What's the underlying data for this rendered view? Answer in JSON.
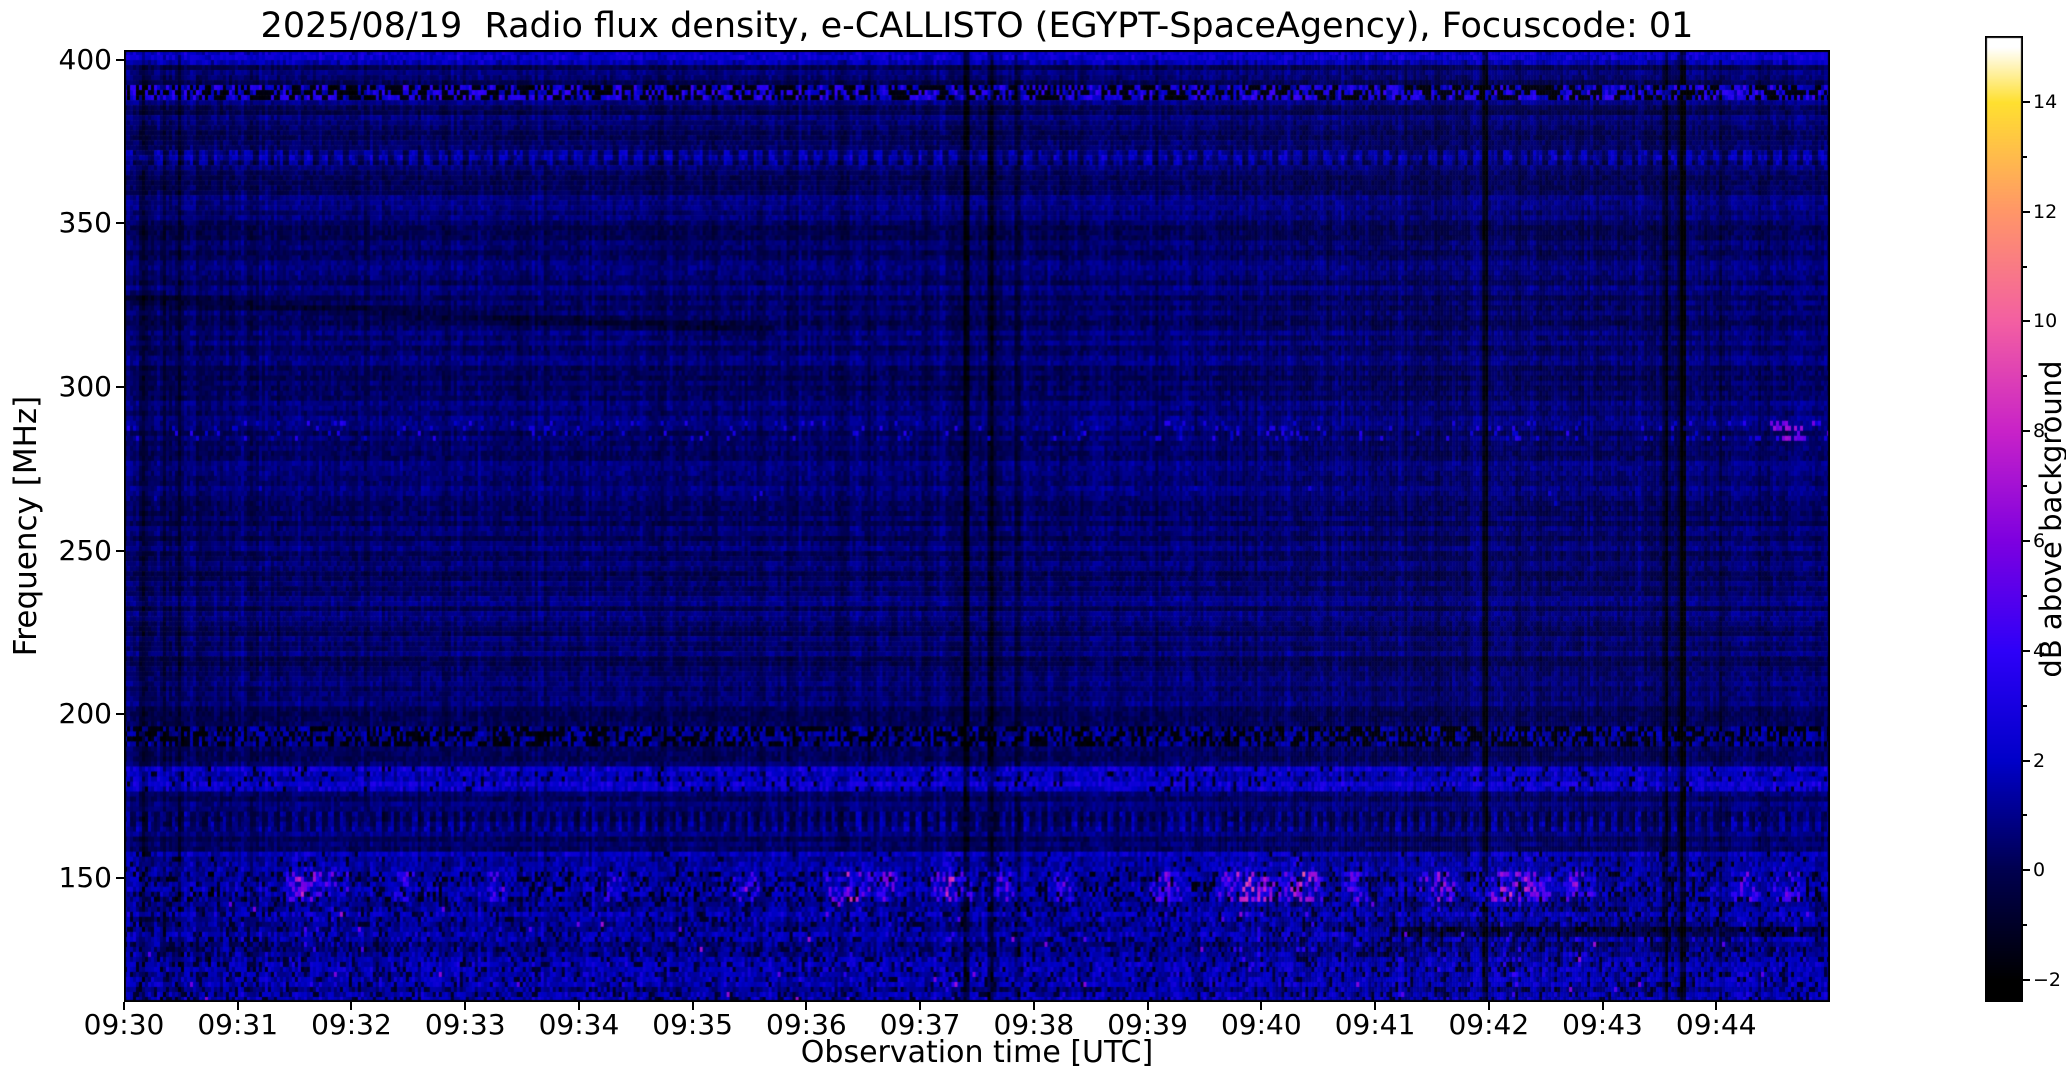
{
  "colors": {
    "background": "#ffffff",
    "text": "#000000",
    "axis": "#000000"
  },
  "chart_data": {
    "type": "heatmap",
    "title": "2025/08/19  Radio flux density, e-CALLISTO (EGYPT-SpaceAgency), Focuscode: 01",
    "xlabel": "Observation time [UTC]",
    "ylabel": "Frequency [MHz]",
    "colorbar_label": "dB above background",
    "x_axis": {
      "range_minutes": [
        0,
        15
      ],
      "start_time": "09:30",
      "ticks": [
        {
          "m": 0,
          "label": "09:30"
        },
        {
          "m": 1,
          "label": "09:31"
        },
        {
          "m": 2,
          "label": "09:32"
        },
        {
          "m": 3,
          "label": "09:33"
        },
        {
          "m": 4,
          "label": "09:34"
        },
        {
          "m": 5,
          "label": "09:35"
        },
        {
          "m": 6,
          "label": "09:36"
        },
        {
          "m": 7,
          "label": "09:37"
        },
        {
          "m": 8,
          "label": "09:38"
        },
        {
          "m": 9,
          "label": "09:39"
        },
        {
          "m": 10,
          "label": "09:40"
        },
        {
          "m": 11,
          "label": "09:41"
        },
        {
          "m": 12,
          "label": "09:42"
        },
        {
          "m": 13,
          "label": "09:43"
        },
        {
          "m": 14,
          "label": "09:44"
        }
      ]
    },
    "y_axis": {
      "range_mhz": [
        112,
        403
      ],
      "ticks": [
        {
          "v": 400,
          "label": "400"
        },
        {
          "v": 350,
          "label": "350"
        },
        {
          "v": 300,
          "label": "300"
        },
        {
          "v": 250,
          "label": "250"
        },
        {
          "v": 200,
          "label": "200"
        },
        {
          "v": 150,
          "label": "150"
        }
      ]
    },
    "colorbar": {
      "axis_range": [
        -2.4,
        15.2
      ],
      "major_ticks": [
        {
          "v": 14,
          "label": "14"
        },
        {
          "v": 12,
          "label": "12"
        },
        {
          "v": 10,
          "label": "10"
        },
        {
          "v": 8,
          "label": "8"
        },
        {
          "v": 6,
          "label": "6"
        },
        {
          "v": 4,
          "label": "4"
        },
        {
          "v": 2,
          "label": "2"
        },
        {
          "v": 0,
          "label": "0"
        },
        {
          "v": -2,
          "label": "−2"
        }
      ],
      "minor_tick_values": [
        13,
        11,
        9,
        7,
        5,
        3,
        1,
        -1
      ]
    },
    "value_range_db": [
      -2,
      15
    ],
    "colormap_stops": [
      {
        "t": 0.0,
        "c": "#000000"
      },
      {
        "t": 0.118,
        "c": "#00004f"
      },
      {
        "t": 0.235,
        "c": "#0000c8"
      },
      {
        "t": 0.353,
        "c": "#2e00f8"
      },
      {
        "t": 0.47,
        "c": "#7d00e0"
      },
      {
        "t": 0.588,
        "c": "#c822c8"
      },
      {
        "t": 0.706,
        "c": "#f35fa2"
      },
      {
        "t": 0.824,
        "c": "#ff9668"
      },
      {
        "t": 0.941,
        "c": "#ffe030"
      },
      {
        "t": 1.0,
        "c": "#ffffff"
      }
    ],
    "noise_seed": 20250819,
    "grid": {
      "cols": 569,
      "rows": 190
    },
    "background_noise": {
      "base": -0.1,
      "amp": 1.0,
      "row_jitter": 0.5,
      "col_jitter": 0.4,
      "col_wave": 0.15
    },
    "bands": [
      {
        "f_lo": 398.5,
        "f_hi": 403.0,
        "mode": "bright",
        "base": 1.0,
        "amp": 1.2
      },
      {
        "f_lo": 387.5,
        "f_hi": 392.0,
        "mode": "rfi",
        "dark_frac": 0.45,
        "base": 1.2,
        "amp": 3.2
      },
      {
        "f_lo": 368.0,
        "f_hi": 372.5,
        "mode": "dotted",
        "base": 0.5,
        "amp": 1.3,
        "period": 5
      },
      {
        "f_lo": 283.0,
        "f_hi": 289.0,
        "mode": "sparse",
        "prob": 0.09,
        "base": 1.6,
        "amp": 2.2,
        "hot_right_t": 0.962
      },
      {
        "f_lo": 262.0,
        "f_hi": 270.0,
        "mode": "sparse",
        "prob": 0.004,
        "base": 1.6,
        "amp": 1.6
      },
      {
        "f_lo": 190.5,
        "f_hi": 196.0,
        "mode": "rfi",
        "dark_frac": 0.5,
        "base": 0.5,
        "amp": 1.6
      },
      {
        "f_lo": 176.0,
        "f_hi": 184.0,
        "mode": "active",
        "base": 0.9,
        "amp": 1.7,
        "dark_prob": 0.07
      },
      {
        "f_lo": 164.5,
        "f_hi": 170.0,
        "mode": "dotted",
        "base": 0.4,
        "amp": 1.3,
        "period": 4
      },
      {
        "f_lo": 152.0,
        "f_hi": 158.0,
        "mode": "active",
        "base": 0.5,
        "amp": 1.4,
        "dark_prob": 0.06,
        "burst_scale": 0.35
      },
      {
        "f_lo": 142.0,
        "f_hi": 152.0,
        "mode": "burst",
        "base": 0.3,
        "amp": 1.7,
        "dark_prob": 0.2,
        "burst_scale": 1.0
      },
      {
        "f_lo": 112.0,
        "f_hi": 142.0,
        "mode": "mottled",
        "base": 0.2,
        "amp": 1.6,
        "dark_prob": 0.16,
        "pink_prob": 0.005,
        "burst_scale": 0.15
      }
    ],
    "bursts": [
      {
        "t": 0.106,
        "w": 0.012,
        "a": 8
      },
      {
        "t": 0.123,
        "w": 0.008,
        "a": 6.5
      },
      {
        "t": 0.164,
        "w": 0.006,
        "a": 5
      },
      {
        "t": 0.219,
        "w": 0.007,
        "a": 5.5
      },
      {
        "t": 0.286,
        "w": 0.006,
        "a": 5
      },
      {
        "t": 0.364,
        "w": 0.008,
        "a": 6
      },
      {
        "t": 0.425,
        "w": 0.014,
        "a": 7.5
      },
      {
        "t": 0.447,
        "w": 0.008,
        "a": 6
      },
      {
        "t": 0.484,
        "w": 0.012,
        "a": 8
      },
      {
        "t": 0.514,
        "w": 0.008,
        "a": 6
      },
      {
        "t": 0.549,
        "w": 0.007,
        "a": 5.5
      },
      {
        "t": 0.61,
        "w": 0.01,
        "a": 6
      },
      {
        "t": 0.659,
        "w": 0.02,
        "a": 8.5
      },
      {
        "t": 0.69,
        "w": 0.012,
        "a": 9
      },
      {
        "t": 0.722,
        "w": 0.007,
        "a": 6
      },
      {
        "t": 0.77,
        "w": 0.012,
        "a": 7
      },
      {
        "t": 0.815,
        "w": 0.02,
        "a": 8.5
      },
      {
        "t": 0.852,
        "w": 0.01,
        "a": 7
      },
      {
        "t": 0.95,
        "w": 0.008,
        "a": 6
      },
      {
        "t": 0.974,
        "w": 0.008,
        "a": 6.5
      }
    ],
    "dark_arc": {
      "t0": 0.0,
      "t1": 0.38,
      "f0": 327,
      "f1": 317,
      "width": 2.5,
      "depth": 1.1
    },
    "dark_rows": [
      {
        "f": 133.5,
        "t0": 0.74,
        "t1": 1.0,
        "depth": 1.6
      }
    ],
    "vertical_dropouts": [
      {
        "t": 0.01,
        "s": 0.45
      },
      {
        "t": 0.022,
        "s": 0.3
      },
      {
        "t": 0.032,
        "s": 0.3
      },
      {
        "t": 0.05,
        "s": 0.3
      },
      {
        "t": 0.313,
        "s": 0.2
      },
      {
        "t": 0.4925,
        "s": 1.0
      },
      {
        "t": 0.5075,
        "s": 0.9
      },
      {
        "t": 0.523,
        "s": 0.55
      },
      {
        "t": 0.604,
        "s": 0.3
      },
      {
        "t": 0.797,
        "s": 0.95
      },
      {
        "t": 0.903,
        "s": 0.85
      },
      {
        "t": 0.9127,
        "s": 1.0
      },
      {
        "t": 0.935,
        "s": 0.35
      }
    ]
  }
}
